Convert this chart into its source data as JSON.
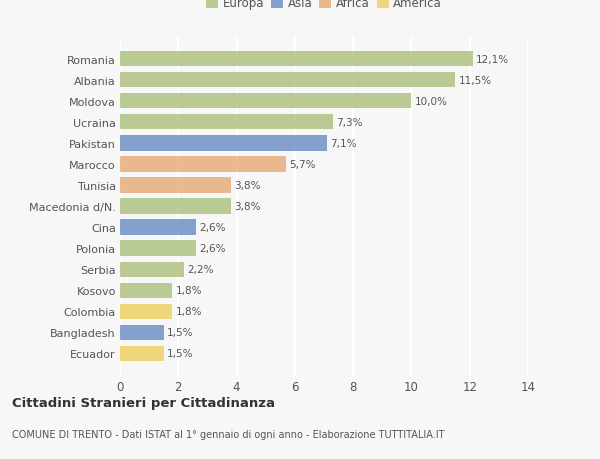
{
  "countries": [
    "Romania",
    "Albania",
    "Moldova",
    "Ucraina",
    "Pakistan",
    "Marocco",
    "Tunisia",
    "Macedonia d/N.",
    "Cina",
    "Polonia",
    "Serbia",
    "Kosovo",
    "Colombia",
    "Bangladesh",
    "Ecuador"
  ],
  "values": [
    12.1,
    11.5,
    10.0,
    7.3,
    7.1,
    5.7,
    3.8,
    3.8,
    2.6,
    2.6,
    2.2,
    1.8,
    1.8,
    1.5,
    1.5
  ],
  "labels": [
    "12,1%",
    "11,5%",
    "10,0%",
    "7,3%",
    "7,1%",
    "5,7%",
    "3,8%",
    "3,8%",
    "2,6%",
    "2,6%",
    "2,2%",
    "1,8%",
    "1,8%",
    "1,5%",
    "1,5%"
  ],
  "continents": [
    "Europa",
    "Europa",
    "Europa",
    "Europa",
    "Asia",
    "Africa",
    "Africa",
    "Europa",
    "Asia",
    "Europa",
    "Europa",
    "Europa",
    "America",
    "Asia",
    "America"
  ],
  "continent_colors": {
    "Europa": "#adc080",
    "Asia": "#6b8ec4",
    "Africa": "#e8aa78",
    "America": "#f0d060"
  },
  "legend_order": [
    "Europa",
    "Asia",
    "Africa",
    "America"
  ],
  "legend_colors": [
    "#adc080",
    "#6b8ec4",
    "#e8aa78",
    "#f0d060"
  ],
  "xlim": [
    0,
    14
  ],
  "xticks": [
    0,
    2,
    4,
    6,
    8,
    10,
    12,
    14
  ],
  "background_color": "#f7f7f7",
  "plot_bg_color": "#f7f7f7",
  "title_main": "Cittadini Stranieri per Cittadinanza",
  "title_sub": "COMUNE DI TRENTO - Dati ISTAT al 1° gennaio di ogni anno - Elaborazione TUTTITALIA.IT",
  "grid_color": "#ffffff",
  "text_color": "#555555",
  "value_color": "#555555",
  "bar_height": 0.72,
  "bar_alpha": 0.82
}
